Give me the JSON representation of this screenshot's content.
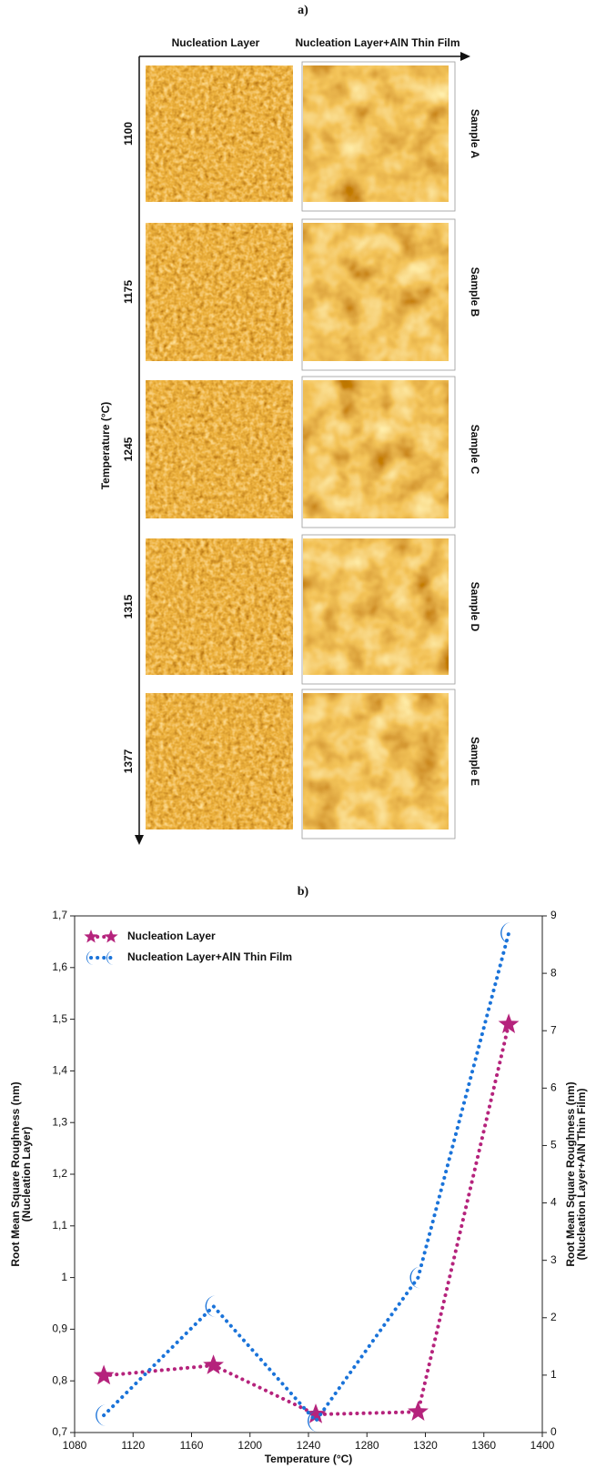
{
  "panel_a": {
    "label": "a)",
    "columns": [
      "Nucleation Layer",
      "Nucleation Layer+AlN Thin Film"
    ],
    "axis_label": "Temperature (°C)",
    "rows": [
      {
        "temperature": "1100",
        "sample": "Sample A"
      },
      {
        "temperature": "1175",
        "sample": "Sample B"
      },
      {
        "temperature": "1245",
        "sample": "Sample C"
      },
      {
        "temperature": "1315",
        "sample": "Sample D"
      },
      {
        "temperature": "1377",
        "sample": "Sample E"
      }
    ]
  },
  "chart_data": {
    "type": "line",
    "title": "b)",
    "x_label": "Temperature (°C)",
    "y_label": [
      "Root Mean Square Roughness (nm)",
      "(Nucleation Layer)"
    ],
    "y2_label": [
      "Root Mean Square Roughness (nm)",
      "(Nucleation Layer+AlN Thin Film)"
    ],
    "x": [
      1100,
      1175,
      1245,
      1315,
      1377
    ],
    "xlim": [
      1080,
      1400
    ],
    "xticks": [
      1080,
      1120,
      1160,
      1200,
      1240,
      1280,
      1320,
      1360,
      1400
    ],
    "ylim": [
      0.7,
      1.7
    ],
    "yticks": [
      {
        "value": 0.7,
        "label": "0,7"
      },
      {
        "value": 0.8,
        "label": "0,8"
      },
      {
        "value": 0.9,
        "label": "0,9"
      },
      1,
      {
        "value": 1.1,
        "label": "1,1"
      },
      {
        "value": 1.2,
        "label": "1,2"
      },
      {
        "value": 1.3,
        "label": "1,3"
      },
      {
        "value": 1.4,
        "label": "1,4"
      },
      {
        "value": 1.5,
        "label": "1,5"
      },
      {
        "value": 1.6,
        "label": "1,6"
      },
      {
        "value": 1.7,
        "label": "1,7"
      }
    ],
    "y2lim": [
      0,
      9
    ],
    "y2ticks": [
      0,
      1,
      2,
      3,
      4,
      5,
      6,
      7,
      8,
      9
    ],
    "legend": "upper left",
    "series": [
      {
        "name": "Nucleation Layer",
        "color": "#b5237c",
        "marker": "star",
        "values": [
          0.81,
          0.83,
          0.735,
          0.74,
          1.49
        ]
      },
      {
        "name": "Nucleation Layer+AlN Thin Film",
        "color": "#1a73d9",
        "marker": "crescent",
        "axis": "y2",
        "values": [
          0.3,
          2.2,
          0.2,
          2.7,
          8.7
        ]
      }
    ]
  }
}
